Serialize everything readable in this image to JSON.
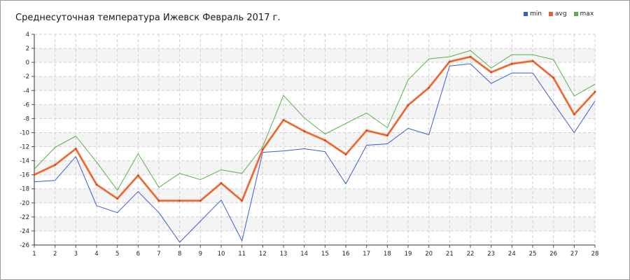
{
  "chart_data": {
    "type": "line",
    "title": "Среднесуточная температура Ижевск  Февраль 2017 г.",
    "x": [
      1,
      2,
      3,
      4,
      5,
      6,
      7,
      8,
      9,
      10,
      11,
      12,
      13,
      14,
      15,
      16,
      17,
      18,
      19,
      20,
      21,
      22,
      23,
      24,
      25,
      26,
      27,
      28
    ],
    "series": [
      {
        "name": "min",
        "color": "#3a5bd9",
        "values": [
          -17,
          -16.8,
          -13.4,
          -20.4,
          -21.4,
          -18.4,
          -21.4,
          -25.6,
          -22.6,
          -19.6,
          -25.4,
          -12.8,
          -12.6,
          -12.3,
          -12.7,
          -17.3,
          -11.8,
          -11.6,
          -9.4,
          -10.3,
          -0.5,
          -0.2,
          -3,
          -1.5,
          -1.5,
          -5.8,
          -10,
          -5.5
        ]
      },
      {
        "name": "avg",
        "color": "#e8602c",
        "values": [
          -16,
          -14.6,
          -12.3,
          -17.4,
          -19.4,
          -16.1,
          -19.7,
          -19.7,
          -19.7,
          -17.2,
          -19.7,
          -12.4,
          -8.2,
          -9.8,
          -11.1,
          -13.1,
          -9.7,
          -10.4,
          -6.1,
          -3.6,
          0.1,
          0.8,
          -1.4,
          -0.2,
          0.2,
          -2.2,
          -7.4,
          -4.2
        ]
      },
      {
        "name": "max",
        "color": "#5bb04b",
        "values": [
          -15.2,
          -12.1,
          -10.5,
          -14.2,
          -18.2,
          -13,
          -17.8,
          -15.8,
          -16.7,
          -15.3,
          -15.8,
          -12,
          -4.7,
          -7.9,
          -10.2,
          -8.7,
          -7.2,
          -9.3,
          -2.5,
          0.5,
          0.8,
          1.7,
          -0.8,
          1.1,
          1.1,
          0.4,
          -4.8,
          -3.1
        ]
      }
    ],
    "yticks": [
      4,
      2,
      0,
      -2,
      -4,
      -6,
      -8,
      -10,
      -12,
      -14,
      -16,
      -18,
      -20,
      -22,
      -24,
      -26
    ],
    "ylim": [
      -26,
      4
    ],
    "xlim": [
      1,
      28
    ],
    "xlabel": "",
    "ylabel": "",
    "grid": true,
    "legend_position": "top-right"
  }
}
